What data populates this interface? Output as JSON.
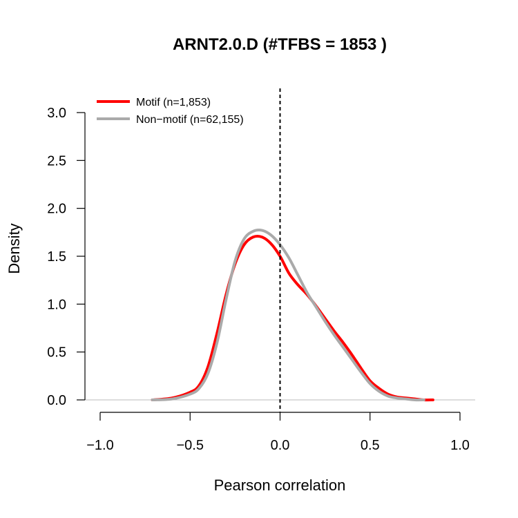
{
  "chart_data": {
    "type": "line",
    "title": "ARNT2.0.D (#TFBS = 1853 )",
    "xlabel": "Pearson correlation",
    "ylabel": "Density",
    "xlim": [
      -1.0,
      1.0
    ],
    "ylim": [
      0.0,
      3.0
    ],
    "x_ticks": [
      "−1.0",
      "−0.5",
      "0.0",
      "0.5",
      "1.0"
    ],
    "y_ticks": [
      "0.0",
      "0.5",
      "1.0",
      "1.5",
      "2.0",
      "2.5",
      "3.0"
    ],
    "vline": 0.0,
    "legend_position": "top-left",
    "series": [
      {
        "name": "Motif (n=1,853)",
        "color": "#ff0000",
        "x": [
          -0.71,
          -0.6,
          -0.5,
          -0.45,
          -0.4,
          -0.35,
          -0.3,
          -0.25,
          -0.2,
          -0.15,
          -0.1,
          -0.05,
          0.0,
          0.05,
          0.1,
          0.15,
          0.2,
          0.25,
          0.3,
          0.35,
          0.4,
          0.45,
          0.5,
          0.55,
          0.6,
          0.65,
          0.7,
          0.75,
          0.8,
          0.85
        ],
        "y": [
          0.0,
          0.02,
          0.08,
          0.15,
          0.35,
          0.7,
          1.1,
          1.42,
          1.62,
          1.7,
          1.7,
          1.63,
          1.5,
          1.32,
          1.2,
          1.1,
          0.98,
          0.85,
          0.72,
          0.6,
          0.47,
          0.33,
          0.2,
          0.12,
          0.06,
          0.03,
          0.02,
          0.01,
          0.0,
          0.0
        ]
      },
      {
        "name": "Non−motif (n=62,155)",
        "color": "#aaaaaa",
        "x": [
          -0.71,
          -0.6,
          -0.5,
          -0.45,
          -0.4,
          -0.35,
          -0.3,
          -0.25,
          -0.2,
          -0.15,
          -0.1,
          -0.05,
          0.0,
          0.05,
          0.1,
          0.15,
          0.2,
          0.25,
          0.3,
          0.35,
          0.4,
          0.45,
          0.5,
          0.55,
          0.6,
          0.65,
          0.7,
          0.75,
          0.8
        ],
        "y": [
          0.0,
          0.01,
          0.06,
          0.12,
          0.28,
          0.6,
          1.05,
          1.45,
          1.68,
          1.76,
          1.77,
          1.72,
          1.62,
          1.48,
          1.3,
          1.12,
          0.97,
          0.82,
          0.68,
          0.55,
          0.42,
          0.29,
          0.17,
          0.09,
          0.04,
          0.02,
          0.01,
          0.0,
          0.0
        ]
      }
    ]
  }
}
